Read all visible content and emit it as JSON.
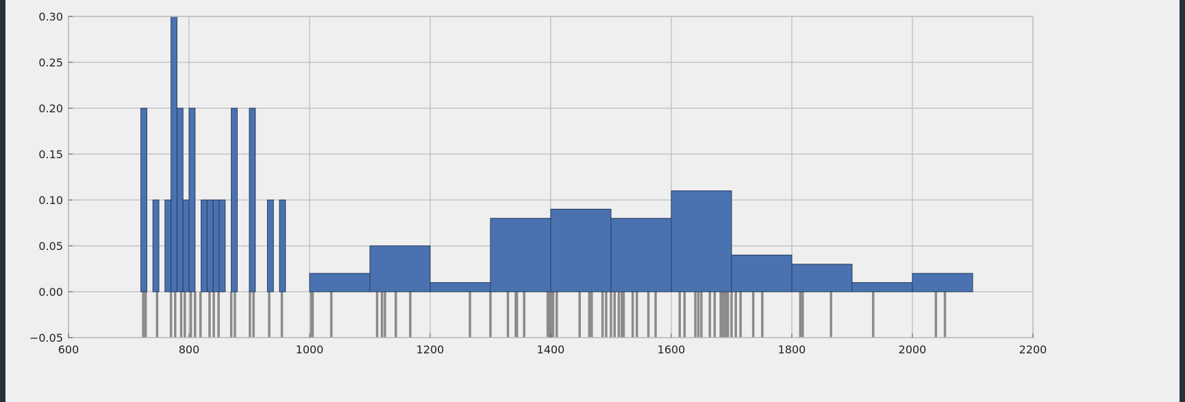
{
  "chart_data": {
    "type": "histogram",
    "title": "",
    "xlabel": "",
    "ylabel": "",
    "xlim": [
      600,
      2200
    ],
    "ylim": [
      -0.05,
      0.3
    ],
    "grid": true,
    "legend": "none",
    "x_ticks": [
      600,
      800,
      1000,
      1200,
      1400,
      1600,
      1800,
      2000,
      2200
    ],
    "x_tick_labels": [
      "600",
      "800",
      "1000",
      "1200",
      "1400",
      "1600",
      "1800",
      "2000",
      "2200"
    ],
    "y_ticks": [
      -0.05,
      0.0,
      0.05,
      0.1,
      0.15,
      0.2,
      0.25,
      0.3
    ],
    "y_tick_labels": [
      "−0.05",
      "0.00",
      "0.05",
      "0.10",
      "0.15",
      "0.20",
      "0.25",
      "0.30"
    ],
    "series": [
      {
        "kind": "bars",
        "color": "#4a72b0",
        "bins": [
          {
            "x0": 720,
            "x1": 730,
            "value": 0.2
          },
          {
            "x0": 740,
            "x1": 750,
            "value": 0.1
          },
          {
            "x0": 760,
            "x1": 770,
            "value": 0.1
          },
          {
            "x0": 770,
            "x1": 780,
            "value": 0.3
          },
          {
            "x0": 780,
            "x1": 790,
            "value": 0.2
          },
          {
            "x0": 790,
            "x1": 800,
            "value": 0.1
          },
          {
            "x0": 800,
            "x1": 810,
            "value": 0.2
          },
          {
            "x0": 820,
            "x1": 830,
            "value": 0.1
          },
          {
            "x0": 830,
            "x1": 840,
            "value": 0.1
          },
          {
            "x0": 840,
            "x1": 850,
            "value": 0.1
          },
          {
            "x0": 850,
            "x1": 860,
            "value": 0.1
          },
          {
            "x0": 870,
            "x1": 880,
            "value": 0.2
          },
          {
            "x0": 900,
            "x1": 910,
            "value": 0.2
          },
          {
            "x0": 930,
            "x1": 940,
            "value": 0.1
          },
          {
            "x0": 950,
            "x1": 960,
            "value": 0.1
          },
          {
            "x0": 1000,
            "x1": 1100,
            "value": 0.02
          },
          {
            "x0": 1100,
            "x1": 1200,
            "value": 0.05
          },
          {
            "x0": 1200,
            "x1": 1300,
            "value": 0.01
          },
          {
            "x0": 1300,
            "x1": 1400,
            "value": 0.08
          },
          {
            "x0": 1400,
            "x1": 1500,
            "value": 0.09
          },
          {
            "x0": 1500,
            "x1": 1600,
            "value": 0.08
          },
          {
            "x0": 1600,
            "x1": 1700,
            "value": 0.11
          },
          {
            "x0": 1700,
            "x1": 1800,
            "value": 0.04
          },
          {
            "x0": 1800,
            "x1": 1900,
            "value": 0.03
          },
          {
            "x0": 1900,
            "x1": 2000,
            "value": 0.01
          },
          {
            "x0": 2000,
            "x1": 2100,
            "value": 0.02
          }
        ]
      },
      {
        "kind": "rug",
        "color": "#8a8a8a",
        "range": [
          -0.05,
          0.0
        ],
        "x": [
          724,
          728,
          747,
          770,
          777,
          787,
          793,
          803,
          810,
          819,
          834,
          841,
          849,
          870,
          876,
          901,
          907,
          933,
          954,
          1003,
          1005,
          1036,
          1112,
          1120,
          1125,
          1143,
          1167,
          1266,
          1300,
          1329,
          1342,
          1344,
          1356,
          1395,
          1398,
          1401,
          1404,
          1410,
          1448,
          1464,
          1468,
          1486,
          1492,
          1500,
          1506,
          1513,
          1518,
          1521,
          1536,
          1543,
          1562,
          1574,
          1614,
          1622,
          1640,
          1645,
          1650,
          1664,
          1672,
          1682,
          1686,
          1690,
          1694,
          1700,
          1707,
          1715,
          1736,
          1751,
          1814,
          1818,
          1865,
          1935,
          2039,
          2054
        ]
      }
    ]
  }
}
